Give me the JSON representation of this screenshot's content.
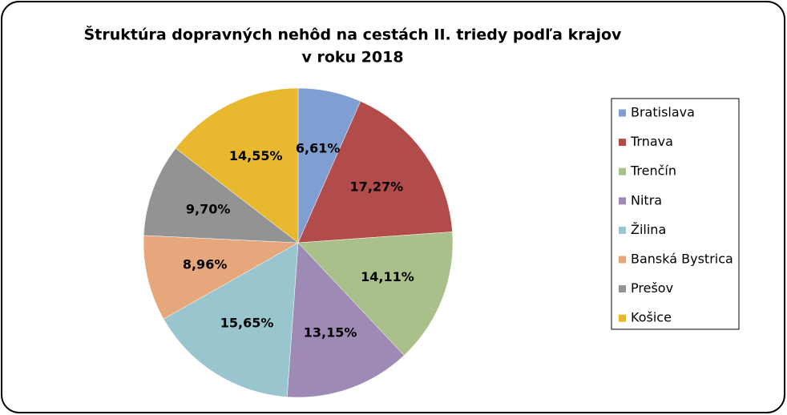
{
  "chart_data": {
    "type": "pie",
    "title": [
      "Štruktúra dopravných nehôd na cestách II. triedy podľa krajov",
      "v roku 2018"
    ],
    "categories": [
      "Bratislava",
      "Trnava",
      "Trenčín",
      "Nitra",
      "Žilina",
      "Banská Bystrica",
      "Prešov",
      "Košice"
    ],
    "values": [
      6.61,
      17.27,
      14.11,
      13.15,
      15.65,
      8.96,
      9.7,
      14.55
    ],
    "value_labels": [
      "6,61%",
      "17,27%",
      "14,11%",
      "13,15%",
      "15,65%",
      "8,96%",
      "9,70%",
      "14,55%"
    ],
    "colors": [
      "#7f9ed2",
      "#b24c4b",
      "#a9c08a",
      "#9e8bb5",
      "#99c5cf",
      "#e6a77c",
      "#939393",
      "#e8b92f"
    ],
    "legend": "right"
  }
}
